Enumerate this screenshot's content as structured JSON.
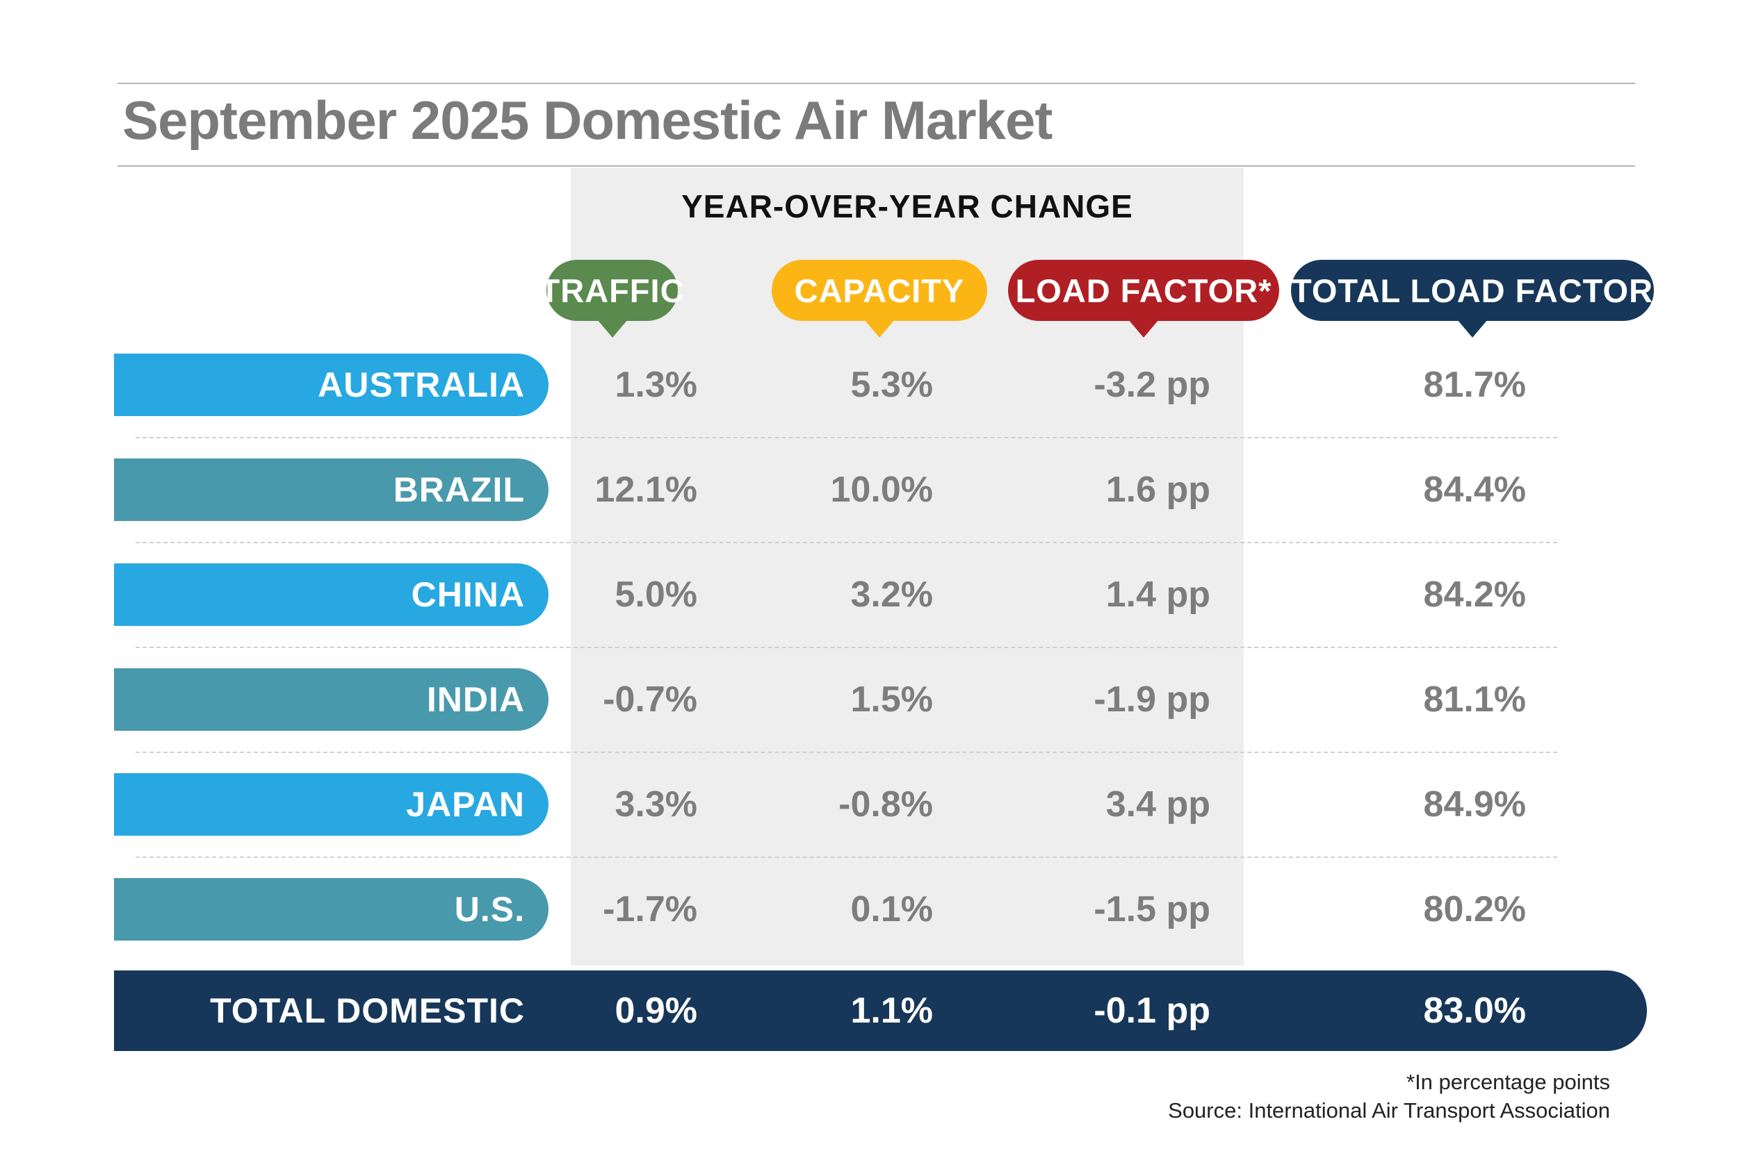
{
  "chart_data": {
    "type": "table",
    "title": "September 2025 Domestic Air Market",
    "group_header": "YEAR-OVER-YEAR CHANGE",
    "columns": [
      {
        "label": "TRAFFIC",
        "color": "#5a8a4e"
      },
      {
        "label": "CAPACITY",
        "color": "#fbb616"
      },
      {
        "label": "LOAD FACTOR*",
        "color": "#b01f24"
      },
      {
        "label": "TOTAL LOAD FACTOR",
        "color": "#163759"
      }
    ],
    "rows": [
      {
        "label": "AUSTRALIA",
        "color": "#28a8e1",
        "values": [
          "1.3%",
          "5.3%",
          "-3.2 pp",
          "81.7%"
        ]
      },
      {
        "label": "BRAZIL",
        "color": "#4899ac",
        "values": [
          "12.1%",
          "10.0%",
          "1.6 pp",
          "84.4%"
        ]
      },
      {
        "label": "CHINA",
        "color": "#28a8e1",
        "values": [
          "5.0%",
          "3.2%",
          "1.4 pp",
          "84.2%"
        ]
      },
      {
        "label": "INDIA",
        "color": "#4899ac",
        "values": [
          "-0.7%",
          "1.5%",
          "-1.9 pp",
          "81.1%"
        ]
      },
      {
        "label": "JAPAN",
        "color": "#28a8e1",
        "values": [
          "3.3%",
          "-0.8%",
          "3.4 pp",
          "84.9%"
        ]
      },
      {
        "label": "U.S.",
        "color": "#4899ac",
        "values": [
          "-1.7%",
          "0.1%",
          "-1.5 pp",
          "80.2%"
        ]
      }
    ],
    "total": {
      "label": "TOTAL DOMESTIC",
      "color": "#163759",
      "values": [
        "0.9%",
        "1.1%",
        "-0.1 pp",
        "83.0%"
      ]
    }
  },
  "footnotes": {
    "note": "*In percentage points",
    "source": "Source: International Air Transport Association"
  }
}
